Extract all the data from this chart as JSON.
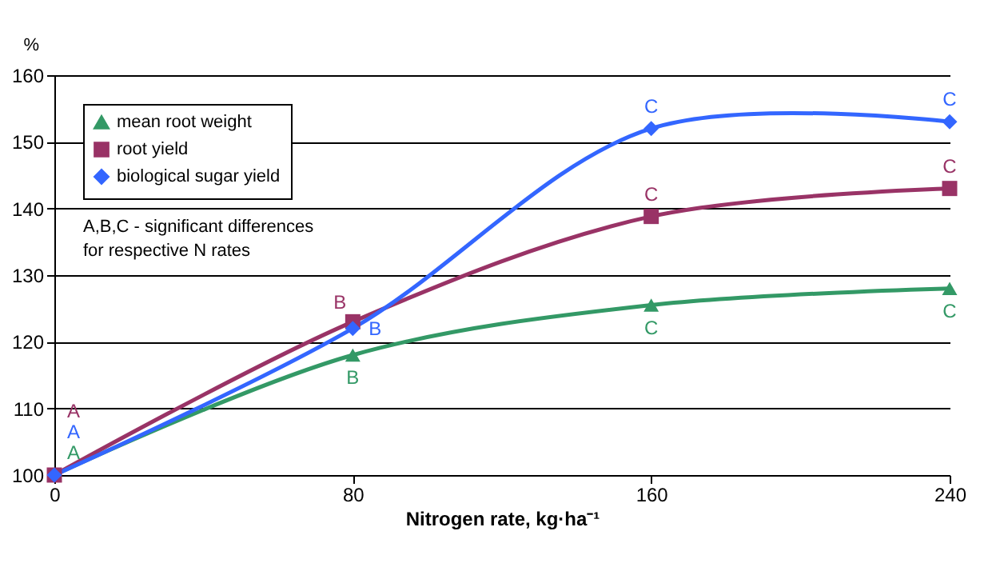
{
  "chart_data": {
    "type": "line",
    "xlabel": "Nitrogen rate, kg·ha⁻¹",
    "ylabel": "%",
    "annotations": [
      "A,B,C - significant differences for respective N rates"
    ],
    "x": [
      0,
      80,
      160,
      240
    ],
    "xlim": [
      0,
      240
    ],
    "xticks": [
      0,
      80,
      160,
      240
    ],
    "ylim": [
      100,
      160
    ],
    "yticks": [
      100,
      110,
      120,
      130,
      140,
      150,
      160
    ],
    "grid": "y",
    "legend": "top left",
    "series": [
      {
        "name": "mean root weight",
        "color": "#339966",
        "marker": "triangle",
        "values": [
          100,
          118,
          125.5,
          128
        ],
        "value_labels": [
          "A",
          "B",
          "C",
          "C"
        ]
      },
      {
        "name": "root yield",
        "color": "#993366",
        "marker": "square",
        "values": [
          100,
          123,
          138.8,
          143
        ],
        "value_labels": [
          "A",
          "B",
          "C",
          "C"
        ]
      },
      {
        "name": "biological sugar yield",
        "color": "#3366ff",
        "marker": "diamond",
        "values": [
          100,
          122,
          152,
          153
        ],
        "value_labels": [
          "A",
          "B",
          "C",
          "C"
        ]
      }
    ]
  }
}
